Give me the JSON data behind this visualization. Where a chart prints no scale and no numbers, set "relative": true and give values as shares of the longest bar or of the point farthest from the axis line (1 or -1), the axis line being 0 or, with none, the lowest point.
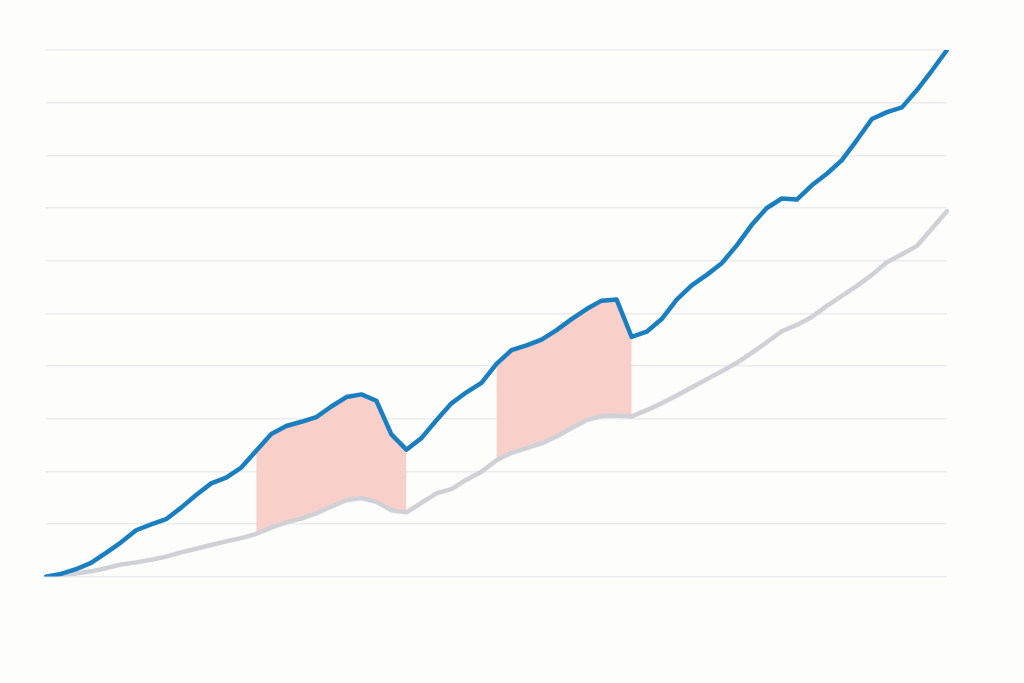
{
  "chart_data": {
    "type": "line",
    "relative": true,
    "grid": "y",
    "legend": false,
    "marker": "none",
    "line_style": "solid",
    "categories": [
      null,
      null,
      null,
      null,
      null,
      null,
      null,
      null,
      null,
      null,
      null,
      null,
      null,
      null,
      null,
      null,
      null,
      null,
      null,
      null,
      null,
      null,
      null,
      null,
      null,
      null,
      null,
      null,
      null,
      null,
      null,
      null,
      null,
      null,
      null,
      null,
      null,
      null,
      null,
      null,
      null,
      null,
      null,
      null,
      null,
      null,
      null,
      null,
      null,
      null,
      null,
      null,
      null,
      null,
      null,
      null,
      null,
      null,
      null,
      null,
      null
    ],
    "series": [
      {
        "color": "#1a7fc1",
        "values": [
          0,
          0.005,
          0.014,
          0.026,
          0.045,
          0.065,
          0.088,
          0.099,
          0.109,
          0.131,
          0.155,
          0.177,
          0.188,
          0.207,
          0.239,
          0.271,
          0.286,
          0.294,
          0.303,
          0.323,
          0.341,
          0.346,
          0.334,
          0.27,
          0.241,
          0.263,
          0.297,
          0.329,
          0.35,
          0.368,
          0.404,
          0.43,
          0.439,
          0.45,
          0.468,
          0.489,
          0.508,
          0.524,
          0.526,
          0.455,
          0.465,
          0.489,
          0.526,
          0.553,
          0.573,
          0.595,
          0.629,
          0.668,
          0.7,
          0.718,
          0.716,
          0.743,
          0.765,
          0.791,
          0.829,
          0.869,
          0.882,
          0.891,
          0.924,
          0.961,
          1
        ],
        "lower": [
          null,
          null,
          null,
          null,
          null,
          null,
          null,
          null,
          null,
          null,
          null,
          null,
          null,
          null,
          0.081,
          0.093,
          0.103,
          0.11,
          0.12,
          0.133,
          0.145,
          0.149,
          0.142,
          0.126,
          0.122,
          null,
          null,
          null,
          null,
          null,
          0.221,
          0.235,
          0.244,
          0.253,
          0.266,
          0.282,
          0.297,
          0.305,
          0.306,
          0.304,
          null,
          null,
          null,
          null,
          null,
          null,
          null,
          null,
          null,
          null,
          null,
          null,
          null,
          null,
          null,
          null,
          null,
          null,
          null,
          null,
          null
        ],
        "upper": [
          null,
          null,
          null,
          null,
          null,
          null,
          null,
          null,
          null,
          null,
          null,
          null,
          null,
          null,
          0.239,
          0.271,
          0.286,
          0.294,
          0.303,
          0.323,
          0.341,
          0.346,
          0.334,
          0.27,
          0.241,
          null,
          null,
          null,
          null,
          null,
          0.404,
          0.43,
          0.439,
          0.45,
          0.468,
          0.489,
          0.508,
          0.524,
          0.526,
          0.455,
          null,
          null,
          null,
          null,
          null,
          null,
          null,
          null,
          null,
          null,
          null,
          null,
          null,
          null,
          null,
          null,
          null,
          null,
          null,
          null,
          null
        ]
      },
      {
        "color": "#d0d1d6",
        "values": [
          0,
          0.003,
          0.006,
          0.01,
          0.016,
          0.023,
          0.027,
          0.032,
          0.038,
          0.046,
          0.053,
          0.06,
          0.067,
          0.073,
          0.081,
          0.093,
          0.103,
          0.11,
          0.12,
          0.133,
          0.145,
          0.149,
          0.142,
          0.126,
          0.122,
          0.14,
          0.158,
          0.166,
          0.184,
          0.199,
          0.221,
          0.235,
          0.244,
          0.253,
          0.266,
          0.282,
          0.297,
          0.305,
          0.306,
          0.304,
          0.316,
          0.329,
          0.344,
          0.359,
          0.375,
          0.39,
          0.406,
          0.425,
          0.445,
          0.466,
          0.478,
          0.493,
          0.514,
          0.533,
          0.552,
          0.573,
          0.597,
          0.612,
          0.628,
          0.661,
          0.694
        ]
      }
    ]
  }
}
